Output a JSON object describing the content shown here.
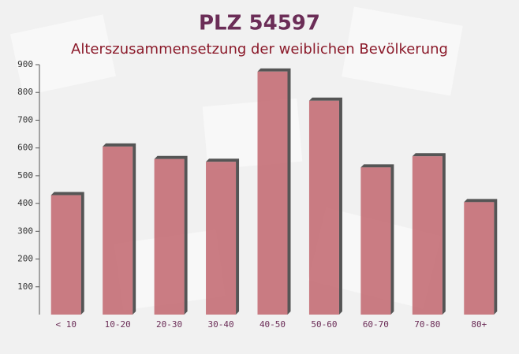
{
  "chart_data": {
    "type": "bar",
    "title": "PLZ 54597",
    "subtitle": "Alterszusammensetzung der weiblichen Bevölkerung",
    "categories": [
      "< 10",
      "10-20",
      "20-30",
      "30-40",
      "40-50",
      "50-60",
      "60-70",
      "70-80",
      "80+"
    ],
    "values": [
      430,
      605,
      560,
      550,
      875,
      770,
      530,
      570,
      405
    ],
    "color": "#c2666e",
    "ylim": [
      0,
      900
    ],
    "yticks": [
      100,
      200,
      300,
      400,
      500,
      600,
      700,
      800,
      900
    ],
    "grid": false
  }
}
